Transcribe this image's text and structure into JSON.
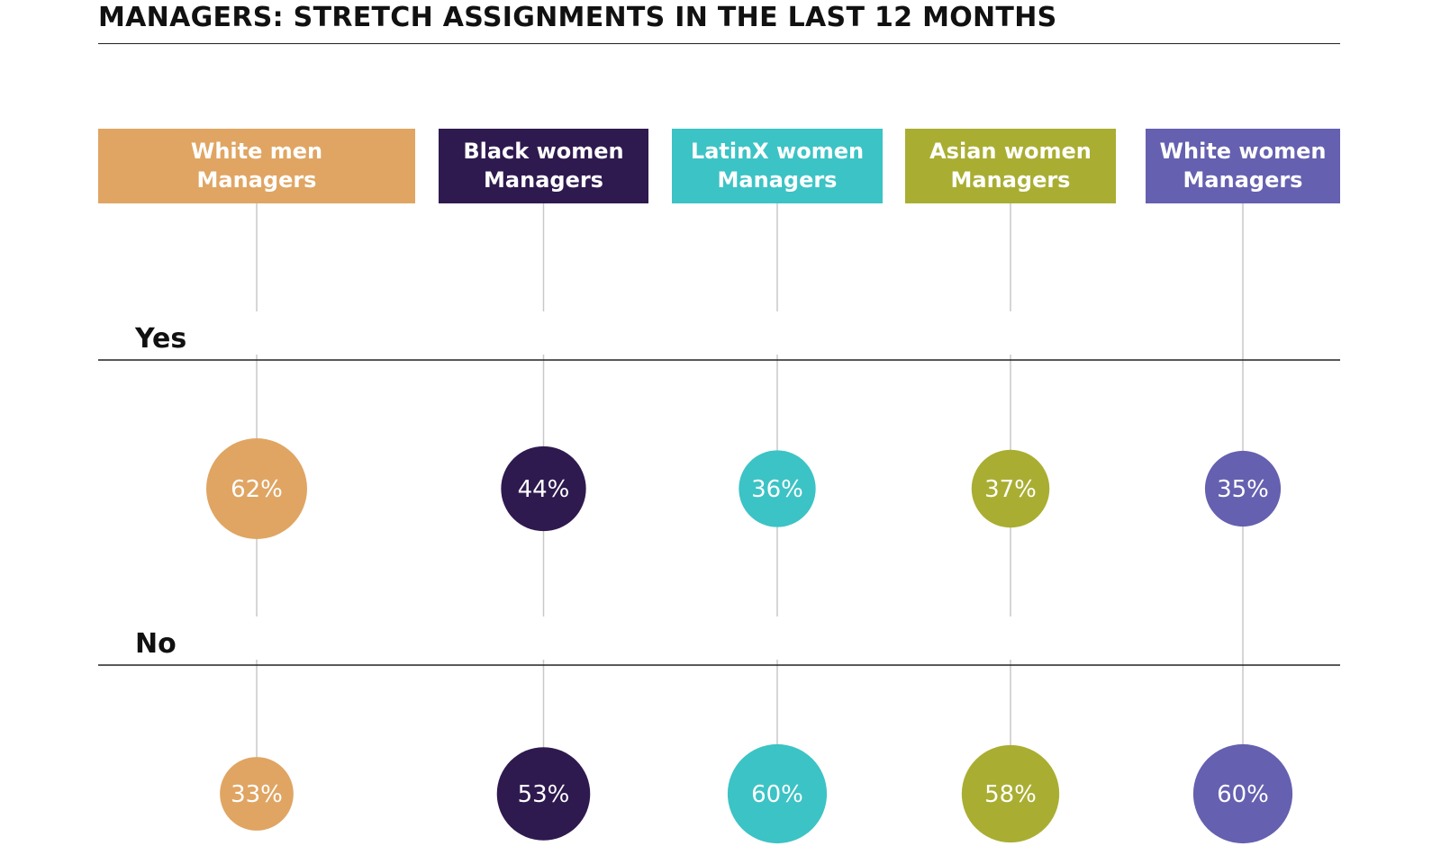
{
  "title": "MANAGERS: STRETCH ASSIGNMENTS IN THE LAST 12 MONTHS",
  "chart_data": {
    "type": "bubble-matrix",
    "title": "MANAGERS: STRETCH ASSIGNMENTS IN THE LAST 12 MONTHS",
    "rows": [
      "Yes",
      "No"
    ],
    "categories": [
      {
        "line1": "White men",
        "line2": "Managers",
        "color": "#E0A563"
      },
      {
        "line1": "Black women",
        "line2": "Managers",
        "color": "#2E1A4F"
      },
      {
        "line1": "LatinX women",
        "line2": "Managers",
        "color": "#3CC3C5"
      },
      {
        "line1": "Asian women",
        "line2": "Managers",
        "color": "#A9AE32"
      },
      {
        "line1": "White women",
        "line2": "Managers",
        "color": "#6560B0"
      }
    ],
    "series": [
      {
        "name": "Yes",
        "values": [
          62,
          44,
          36,
          37,
          35
        ]
      },
      {
        "name": "No",
        "values": [
          33,
          53,
          60,
          58,
          60
        ]
      }
    ],
    "value_format": "{}%"
  }
}
